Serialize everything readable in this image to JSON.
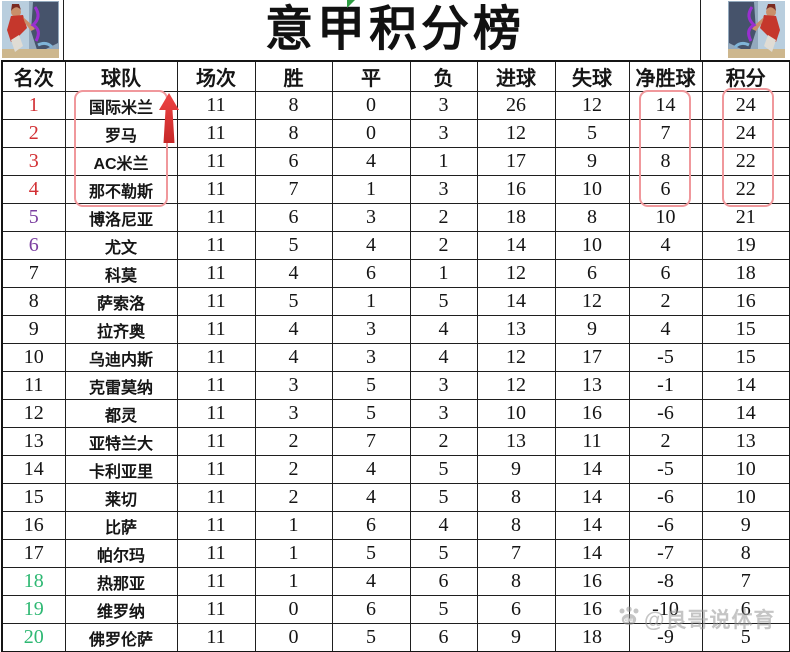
{
  "title": "意甲积分榜",
  "header": {
    "columns": [
      "名次",
      "球队",
      "场次",
      "胜",
      "平",
      "负",
      "进球",
      "失球",
      "净胜球",
      "积分"
    ]
  },
  "chart_data": {
    "type": "table",
    "title": "意甲积分榜",
    "columns": [
      "名次",
      "球队",
      "场次",
      "胜",
      "平",
      "负",
      "进球",
      "失球",
      "净胜球",
      "积分"
    ],
    "rows": [
      [
        1,
        "国际米兰",
        11,
        8,
        0,
        3,
        26,
        12,
        14,
        24
      ],
      [
        2,
        "罗马",
        11,
        8,
        0,
        3,
        12,
        5,
        7,
        24
      ],
      [
        3,
        "AC米兰",
        11,
        6,
        4,
        1,
        17,
        9,
        8,
        22
      ],
      [
        4,
        "那不勒斯",
        11,
        7,
        1,
        3,
        16,
        10,
        6,
        22
      ],
      [
        5,
        "博洛尼亚",
        11,
        6,
        3,
        2,
        18,
        8,
        10,
        21
      ],
      [
        6,
        "尤文",
        11,
        5,
        4,
        2,
        14,
        10,
        4,
        19
      ],
      [
        7,
        "科莫",
        11,
        4,
        6,
        1,
        12,
        6,
        6,
        18
      ],
      [
        8,
        "萨索洛",
        11,
        5,
        1,
        5,
        14,
        12,
        2,
        16
      ],
      [
        9,
        "拉齐奥",
        11,
        4,
        3,
        4,
        13,
        9,
        4,
        15
      ],
      [
        10,
        "乌迪内斯",
        11,
        4,
        3,
        4,
        12,
        17,
        -5,
        15
      ],
      [
        11,
        "克雷莫纳",
        11,
        3,
        5,
        3,
        12,
        13,
        -1,
        14
      ],
      [
        12,
        "都灵",
        11,
        3,
        5,
        3,
        10,
        16,
        -6,
        14
      ],
      [
        13,
        "亚特兰大",
        11,
        2,
        7,
        2,
        13,
        11,
        2,
        13
      ],
      [
        14,
        "卡利亚里",
        11,
        2,
        4,
        5,
        9,
        14,
        -5,
        10
      ],
      [
        15,
        "莱切",
        11,
        2,
        4,
        5,
        8,
        14,
        -6,
        10
      ],
      [
        16,
        "比萨",
        11,
        1,
        6,
        4,
        8,
        14,
        -6,
        9
      ],
      [
        17,
        "帕尔玛",
        11,
        1,
        5,
        5,
        7,
        14,
        -7,
        8
      ],
      [
        18,
        "热那亚",
        11,
        1,
        4,
        6,
        8,
        16,
        -8,
        7
      ],
      [
        19,
        "维罗纳",
        11,
        0,
        6,
        5,
        6,
        16,
        -10,
        6
      ],
      [
        20,
        "佛罗伦萨",
        11,
        0,
        5,
        6,
        9,
        18,
        -9,
        5
      ]
    ]
  },
  "rank_colors": {
    "red": [
      1,
      2,
      3,
      4
    ],
    "purple": [
      5,
      6
    ],
    "green": [
      18,
      19,
      20
    ]
  },
  "highlights": {
    "team_box_ranks": "1-4",
    "goal_diff_box_ranks": "1-4",
    "points_box_ranks": "1-4",
    "trend_arrow": "up"
  },
  "watermark": {
    "text": "@良哥说体育"
  },
  "colors": {
    "rank_red": "#d23034",
    "rank_purple": "#7b3fa0",
    "rank_green": "#2eb873",
    "highlight_box": "#f0989c",
    "arrow_red": "#e0343a",
    "grid": "#1f1f1f"
  },
  "icons": {
    "left_corner": "anime-basketball-player-art",
    "right_corner": "anime-basketball-player-art-mirrored",
    "watermark_logo": "paw-logo"
  }
}
